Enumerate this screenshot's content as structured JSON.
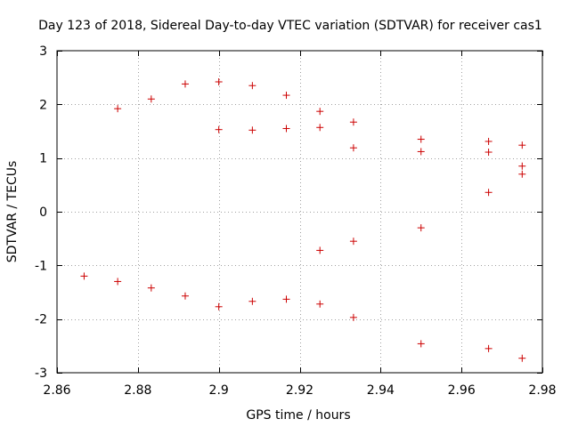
{
  "chart_data": {
    "type": "scatter",
    "title": "Day 123 of 2018, Sidereal Day-to-day VTEC variation (SDTVAR) for receiver cas1",
    "xlabel": "GPS time / hours",
    "ylabel": "SDTVAR / TECUs",
    "xlim": [
      2.86,
      2.98
    ],
    "ylim": [
      -3,
      3
    ],
    "xticks": [
      2.86,
      2.88,
      2.9,
      2.92,
      2.94,
      2.96,
      2.98
    ],
    "xtick_labels": [
      "2.86",
      "2.88",
      "2.9",
      "2.92",
      "2.94",
      "2.96",
      "2.98"
    ],
    "yticks": [
      -3,
      -2,
      -1,
      0,
      1,
      2,
      3
    ],
    "ytick_labels": [
      "-3",
      "-2",
      "-1",
      "0",
      "1",
      "2",
      "3"
    ],
    "grid": true,
    "marker_color": "#cc0000",
    "series": [
      {
        "name": "SDTVAR",
        "points": [
          [
            2.8667,
            -1.2
          ],
          [
            2.875,
            1.92
          ],
          [
            2.875,
            -1.3
          ],
          [
            2.8833,
            2.1
          ],
          [
            2.8833,
            -1.42
          ],
          [
            2.8917,
            2.38
          ],
          [
            2.8917,
            -1.57
          ],
          [
            2.9,
            2.42
          ],
          [
            2.9,
            1.53
          ],
          [
            2.9,
            -1.77
          ],
          [
            2.9083,
            2.35
          ],
          [
            2.9083,
            1.52
          ],
          [
            2.9083,
            -1.67
          ],
          [
            2.9167,
            2.17
          ],
          [
            2.9167,
            1.55
          ],
          [
            2.9167,
            -1.63
          ],
          [
            2.925,
            1.87
          ],
          [
            2.925,
            1.57
          ],
          [
            2.925,
            -0.72
          ],
          [
            2.925,
            -1.72
          ],
          [
            2.9333,
            1.67
          ],
          [
            2.9333,
            1.19
          ],
          [
            2.9333,
            -0.55
          ],
          [
            2.9333,
            -1.97
          ],
          [
            2.95,
            1.35
          ],
          [
            2.95,
            1.12
          ],
          [
            2.95,
            -0.3
          ],
          [
            2.95,
            -2.46
          ],
          [
            2.9667,
            1.31
          ],
          [
            2.9667,
            1.11
          ],
          [
            2.9667,
            0.36
          ],
          [
            2.9667,
            -2.55
          ],
          [
            2.975,
            1.24
          ],
          [
            2.975,
            0.85
          ],
          [
            2.975,
            0.7
          ],
          [
            2.975,
            -2.73
          ]
        ]
      }
    ]
  }
}
